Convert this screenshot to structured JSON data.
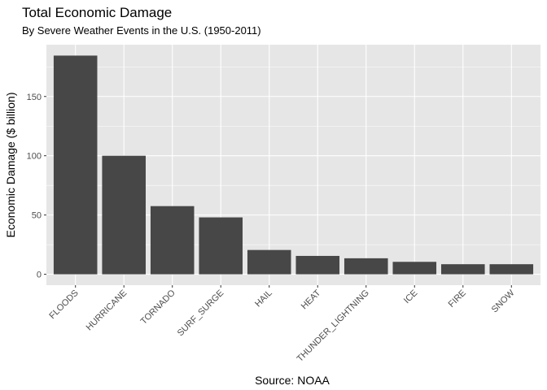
{
  "chart_data": {
    "type": "bar",
    "title": "Total Economic Damage",
    "subtitle": "By Severe Weather Events in the U.S. (1950-2011)",
    "xlabel": "Source: NOAA",
    "ylabel": "Economic Damage ($ billion)",
    "categories": [
      "FLOODS",
      "HURRICANE",
      "TORNADO",
      "SURF_SURGE",
      "HAIL",
      "HEAT",
      "THUNDER_LIGHTNING",
      "ICE",
      "FIRE",
      "SNOW"
    ],
    "values": [
      184.5,
      100,
      57.5,
      48,
      20.5,
      15.5,
      13.5,
      10.5,
      8.5,
      8.5
    ],
    "yticks": [
      0,
      50,
      100,
      150
    ],
    "ylim": [
      -9.2,
      193.7
    ],
    "grid": true,
    "legend": "none"
  },
  "colors": {
    "panel": "#e6e6e6",
    "grid_major": "#ffffff",
    "bar": "#474747",
    "tick_text": "#4d4d4d",
    "tick_mark": "#333333"
  }
}
